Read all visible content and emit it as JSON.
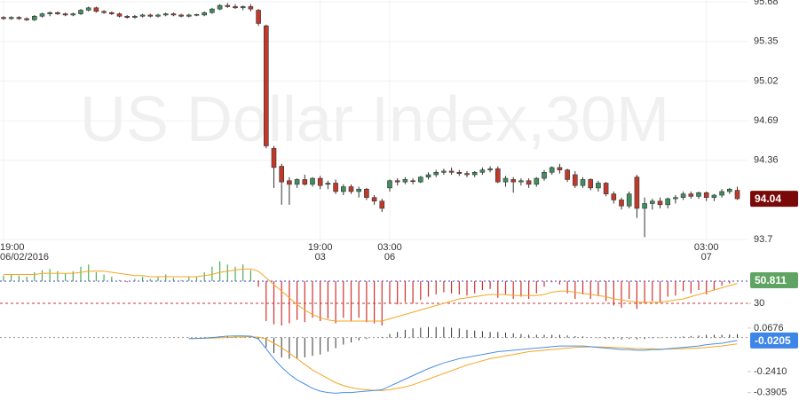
{
  "chart_data": [
    {
      "type": "candlestick",
      "title": "US Dollar Index,30M",
      "categories": [
        [
          "19:00",
          "06/02/2016"
        ],
        null,
        null,
        null,
        null,
        null,
        null,
        null,
        null,
        null,
        null,
        null,
        null,
        null,
        null,
        null,
        null,
        null,
        null,
        null,
        null,
        null,
        null,
        null,
        null,
        null,
        null,
        null,
        null,
        null,
        null,
        null,
        null,
        null,
        null,
        null,
        null,
        null,
        null,
        null,
        null,
        [
          "19:00",
          "03"
        ],
        null,
        null,
        null,
        null,
        null,
        null,
        null,
        null,
        [
          "03:00",
          "06"
        ],
        null,
        null,
        null,
        null,
        null,
        null,
        null,
        null,
        null,
        null,
        null,
        null,
        null,
        null,
        null,
        null,
        null,
        null,
        null,
        null,
        null,
        null,
        null,
        null,
        null,
        null,
        null,
        null,
        null,
        null,
        null,
        null,
        null,
        null,
        null,
        null,
        null,
        null,
        null,
        null,
        [
          "03:00",
          "07"
        ],
        null,
        null,
        null,
        null
      ],
      "ohlc": [
        [
          95.55,
          95.56,
          95.53,
          95.54
        ],
        [
          95.54,
          95.56,
          95.53,
          95.55
        ],
        [
          95.55,
          95.56,
          95.53,
          95.54
        ],
        [
          95.54,
          95.55,
          95.52,
          95.53
        ],
        [
          95.53,
          95.57,
          95.52,
          95.56
        ],
        [
          95.56,
          95.59,
          95.55,
          95.58
        ],
        [
          95.58,
          95.6,
          95.56,
          95.59
        ],
        [
          95.59,
          95.6,
          95.57,
          95.58
        ],
        [
          95.58,
          95.59,
          95.56,
          95.57
        ],
        [
          95.57,
          95.59,
          95.56,
          95.58
        ],
        [
          95.58,
          95.62,
          95.57,
          95.61
        ],
        [
          95.61,
          95.64,
          95.6,
          95.63
        ],
        [
          95.63,
          95.64,
          95.59,
          95.6
        ],
        [
          95.6,
          95.61,
          95.58,
          95.59
        ],
        [
          95.59,
          95.6,
          95.57,
          95.58
        ],
        [
          95.58,
          95.59,
          95.55,
          95.56
        ],
        [
          95.56,
          95.57,
          95.54,
          95.55
        ],
        [
          95.55,
          95.57,
          95.54,
          95.56
        ],
        [
          95.56,
          95.58,
          95.55,
          95.57
        ],
        [
          95.57,
          95.58,
          95.55,
          95.56
        ],
        [
          95.56,
          95.58,
          95.55,
          95.57
        ],
        [
          95.57,
          95.59,
          95.56,
          95.58
        ],
        [
          95.58,
          95.59,
          95.56,
          95.57
        ],
        [
          95.57,
          95.58,
          95.55,
          95.56
        ],
        [
          95.56,
          95.58,
          95.55,
          95.57
        ],
        [
          95.57,
          95.58,
          95.56,
          95.575
        ],
        [
          95.57,
          95.6,
          95.56,
          95.59
        ],
        [
          95.59,
          95.63,
          95.58,
          95.62
        ],
        [
          95.62,
          95.66,
          95.61,
          95.65
        ],
        [
          95.65,
          95.67,
          95.63,
          95.64
        ],
        [
          95.64,
          95.66,
          95.62,
          95.63
        ],
        [
          95.63,
          95.65,
          95.61,
          95.64
        ],
        [
          95.64,
          95.66,
          95.6,
          95.62
        ],
        [
          95.61,
          95.62,
          95.48,
          95.5
        ],
        [
          95.48,
          95.49,
          94.46,
          94.48
        ],
        [
          94.46,
          94.48,
          94.13,
          94.3
        ],
        [
          94.31,
          94.33,
          93.99,
          94.18
        ],
        [
          94.19,
          94.22,
          93.99,
          94.16
        ],
        [
          94.16,
          94.21,
          94.13,
          94.2
        ],
        [
          94.2,
          94.24,
          94.15,
          94.16
        ],
        [
          94.16,
          94.22,
          94.14,
          94.21
        ],
        [
          94.21,
          94.23,
          94.12,
          94.15
        ],
        [
          94.16,
          94.19,
          94.12,
          94.17
        ],
        [
          94.17,
          94.2,
          94.08,
          94.1
        ],
        [
          94.1,
          94.16,
          94.07,
          94.14
        ],
        [
          94.14,
          94.16,
          94.08,
          94.1
        ],
        [
          94.1,
          94.14,
          94.05,
          94.12
        ],
        [
          94.12,
          94.13,
          94.03,
          94.05
        ],
        [
          94.05,
          94.07,
          93.99,
          94.02
        ],
        [
          94.02,
          94.04,
          93.93,
          93.96
        ],
        [
          94.13,
          94.2,
          94.1,
          94.19
        ],
        [
          94.19,
          94.21,
          94.15,
          94.18
        ],
        [
          94.18,
          94.22,
          94.16,
          94.2
        ],
        [
          94.19,
          94.21,
          94.16,
          94.185
        ],
        [
          94.18,
          94.23,
          94.17,
          94.22
        ],
        [
          94.22,
          94.26,
          94.2,
          94.24
        ],
        [
          94.24,
          94.28,
          94.22,
          94.26
        ],
        [
          94.26,
          94.29,
          94.24,
          94.27
        ],
        [
          94.27,
          94.3,
          94.24,
          94.26
        ],
        [
          94.26,
          94.28,
          94.23,
          94.25
        ],
        [
          94.25,
          94.27,
          94.22,
          94.24
        ],
        [
          94.24,
          94.27,
          94.22,
          94.26
        ],
        [
          94.26,
          94.3,
          94.24,
          94.28
        ],
        [
          94.28,
          94.31,
          94.26,
          94.29
        ],
        [
          94.29,
          94.31,
          94.17,
          94.18
        ],
        [
          94.18,
          94.23,
          94.14,
          94.21
        ],
        [
          94.2,
          94.22,
          94.09,
          94.18
        ],
        [
          94.18,
          94.21,
          94.15,
          94.19
        ],
        [
          94.19,
          94.21,
          94.13,
          94.16
        ],
        [
          94.16,
          94.22,
          94.14,
          94.21
        ],
        [
          94.21,
          94.28,
          94.19,
          94.26
        ],
        [
          94.26,
          94.31,
          94.24,
          94.3
        ],
        [
          94.3,
          94.33,
          94.25,
          94.28
        ],
        [
          94.28,
          94.29,
          94.18,
          94.2
        ],
        [
          94.24,
          94.27,
          94.13,
          94.15
        ],
        [
          94.15,
          94.22,
          94.13,
          94.2
        ],
        [
          94.2,
          94.21,
          94.11,
          94.13
        ],
        [
          94.13,
          94.19,
          94.1,
          94.17
        ],
        [
          94.17,
          94.18,
          94.06,
          94.08
        ],
        [
          94.08,
          94.1,
          94,
          94.03
        ],
        [
          94.03,
          94.05,
          93.95,
          93.98
        ],
        [
          93.98,
          94.1,
          93.96,
          94.08
        ],
        [
          94.22,
          94.24,
          93.88,
          93.96
        ],
        [
          93.96,
          94.05,
          93.72,
          94
        ],
        [
          94,
          94.04,
          93.95,
          94.02
        ],
        [
          94.02,
          94.05,
          93.96,
          93.99
        ],
        [
          93.99,
          94.05,
          93.96,
          94.04
        ],
        [
          94.04,
          94.07,
          94,
          94.05
        ],
        [
          94.05,
          94.1,
          94.03,
          94.08
        ],
        [
          94.08,
          94.1,
          94.04,
          94.06
        ],
        [
          94.06,
          94.1,
          94.04,
          94.09
        ],
        [
          94.09,
          94.1,
          94.02,
          94.05
        ],
        [
          94.05,
          94.08,
          94.02,
          94.07
        ],
        [
          94.07,
          94.12,
          94.05,
          94.1
        ],
        [
          94.1,
          94.13,
          94.08,
          94.12
        ],
        [
          94.11,
          94.14,
          94.03,
          94.04
        ]
      ],
      "up_color": "#3f8f5f",
      "down_color": "#c0392b",
      "badge_color": "#7a0a0a",
      "ylim": [
        93.686,
        95.695
      ],
      "yticks": [
        95.68,
        95.35,
        95.02,
        94.69,
        94.36,
        93.7
      ],
      "grid": true
    },
    {
      "type": "rsi",
      "values": [
        55,
        56,
        55,
        54,
        58,
        60,
        61,
        59,
        57,
        59,
        63,
        65,
        58,
        56,
        54,
        51,
        49,
        52,
        54,
        52,
        54,
        56,
        53,
        51,
        54,
        54,
        58,
        63,
        68,
        65,
        63,
        65,
        60,
        45,
        14,
        11,
        10,
        12,
        15,
        13,
        17,
        14,
        16,
        12,
        17,
        14,
        17,
        13,
        12,
        10,
        30,
        29,
        31,
        30,
        33,
        36,
        38,
        40,
        39,
        38,
        37,
        39,
        42,
        43,
        35,
        38,
        34,
        36,
        34,
        39,
        45,
        49,
        47,
        39,
        34,
        38,
        34,
        37,
        32,
        28,
        26,
        34,
        25,
        30,
        32,
        31,
        36,
        37,
        41,
        39,
        42,
        38,
        42,
        46,
        48,
        50.811
      ],
      "ma": [
        56,
        56,
        56,
        56,
        56,
        57,
        57,
        57,
        57,
        57,
        58,
        59,
        59,
        59,
        58,
        57,
        56,
        55,
        55,
        54,
        54,
        54,
        54,
        54,
        54,
        54,
        55,
        56,
        58,
        59,
        60,
        61,
        61,
        59,
        53,
        47,
        41,
        35,
        29,
        24,
        20,
        17,
        15,
        14,
        14,
        14,
        14,
        14,
        14,
        14,
        16,
        18,
        20,
        22,
        24,
        26,
        28,
        30,
        32,
        34,
        35,
        36,
        37,
        38,
        38,
        38,
        37,
        37,
        37,
        37,
        38,
        40,
        41,
        41,
        40,
        39,
        38,
        37,
        36,
        34,
        33,
        32,
        31,
        31,
        31,
        31,
        32,
        33,
        34,
        36,
        38,
        40,
        42,
        44,
        46,
        48
      ],
      "baseline": 50,
      "up_color": "#4caf50",
      "down_color": "#d0312d",
      "ma_color": "#f5a623",
      "badge_color": "#5fa463",
      "ylim": [
        7.6,
        69.2
      ],
      "yticks": [
        30
      ]
    },
    {
      "type": "macd",
      "macd": [
        null,
        null,
        null,
        null,
        null,
        null,
        null,
        null,
        null,
        null,
        null,
        null,
        null,
        null,
        null,
        null,
        null,
        null,
        null,
        null,
        null,
        null,
        null,
        null,
        -0.008,
        -0.006,
        -0.004,
        0,
        0.006,
        0.01,
        0.012,
        0.012,
        0.01,
        -0.01,
        -0.08,
        -0.15,
        -0.21,
        -0.26,
        -0.3,
        -0.33,
        -0.36,
        -0.38,
        -0.39,
        -0.395,
        -0.39,
        -0.39,
        -0.385,
        -0.38,
        -0.375,
        -0.37,
        -0.345,
        -0.32,
        -0.295,
        -0.27,
        -0.245,
        -0.22,
        -0.2,
        -0.18,
        -0.165,
        -0.15,
        -0.14,
        -0.13,
        -0.12,
        -0.11,
        -0.1,
        -0.095,
        -0.09,
        -0.085,
        -0.08,
        -0.075,
        -0.07,
        -0.065,
        -0.06,
        -0.06,
        -0.06,
        -0.06,
        -0.065,
        -0.07,
        -0.075,
        -0.08,
        -0.085,
        -0.085,
        -0.09,
        -0.09,
        -0.085,
        -0.085,
        -0.08,
        -0.075,
        -0.07,
        -0.065,
        -0.06,
        -0.05,
        -0.045,
        -0.04,
        -0.03,
        -0.0205
      ],
      "signal": [
        null,
        null,
        null,
        null,
        null,
        null,
        null,
        null,
        null,
        null,
        null,
        null,
        null,
        null,
        null,
        null,
        null,
        null,
        null,
        null,
        null,
        null,
        null,
        null,
        -0.006,
        -0.006,
        -0.005,
        -0.004,
        -0.002,
        0,
        0.003,
        0.005,
        0.006,
        0.003,
        -0.01,
        -0.04,
        -0.07,
        -0.11,
        -0.15,
        -0.19,
        -0.23,
        -0.26,
        -0.29,
        -0.32,
        -0.34,
        -0.355,
        -0.365,
        -0.37,
        -0.375,
        -0.375,
        -0.37,
        -0.36,
        -0.35,
        -0.335,
        -0.315,
        -0.295,
        -0.275,
        -0.255,
        -0.235,
        -0.215,
        -0.195,
        -0.18,
        -0.165,
        -0.15,
        -0.14,
        -0.13,
        -0.12,
        -0.11,
        -0.1,
        -0.095,
        -0.09,
        -0.085,
        -0.08,
        -0.075,
        -0.07,
        -0.068,
        -0.066,
        -0.066,
        -0.068,
        -0.07,
        -0.072,
        -0.075,
        -0.078,
        -0.08,
        -0.08,
        -0.082,
        -0.082,
        -0.08,
        -0.078,
        -0.076,
        -0.074,
        -0.07,
        -0.065,
        -0.06,
        -0.052,
        -0.045
      ],
      "histogram": [
        null,
        null,
        null,
        null,
        null,
        null,
        null,
        null,
        null,
        null,
        null,
        null,
        null,
        null,
        null,
        null,
        null,
        null,
        null,
        null,
        null,
        null,
        null,
        null,
        -0.002,
        0,
        0.001,
        0.004,
        0.008,
        0.01,
        0.009,
        0.007,
        0.004,
        -0.013,
        -0.07,
        -0.11,
        -0.14,
        -0.15,
        -0.15,
        -0.14,
        -0.13,
        -0.12,
        -0.1,
        -0.075,
        -0.05,
        -0.035,
        -0.02,
        -0.01,
        0,
        0.005,
        0.025,
        0.04,
        0.055,
        0.065,
        0.07,
        0.075,
        0.075,
        0.075,
        0.07,
        0.065,
        0.055,
        0.05,
        0.045,
        0.04,
        0.04,
        0.035,
        0.03,
        0.025,
        0.02,
        0.02,
        0.02,
        0.02,
        0.02,
        0.015,
        0.01,
        0.008,
        0.001,
        -0.004,
        -0.007,
        -0.01,
        -0.013,
        -0.01,
        -0.012,
        -0.01,
        -0.005,
        -0.003,
        0.002,
        0.005,
        0.008,
        0.011,
        0.014,
        0.02,
        0.02,
        0.02,
        0.022,
        0.0245
      ],
      "macd_color": "#4a90e2",
      "signal_color": "#f5a623",
      "histogram_color": "#333333",
      "badge_color": "#3d85e6",
      "ylim": [
        -0.443,
        0.092
      ],
      "yticks": [
        0.0676,
        {
          "value": -0.241,
          "label": "-0.2410"
        },
        -0.3905
      ]
    }
  ]
}
